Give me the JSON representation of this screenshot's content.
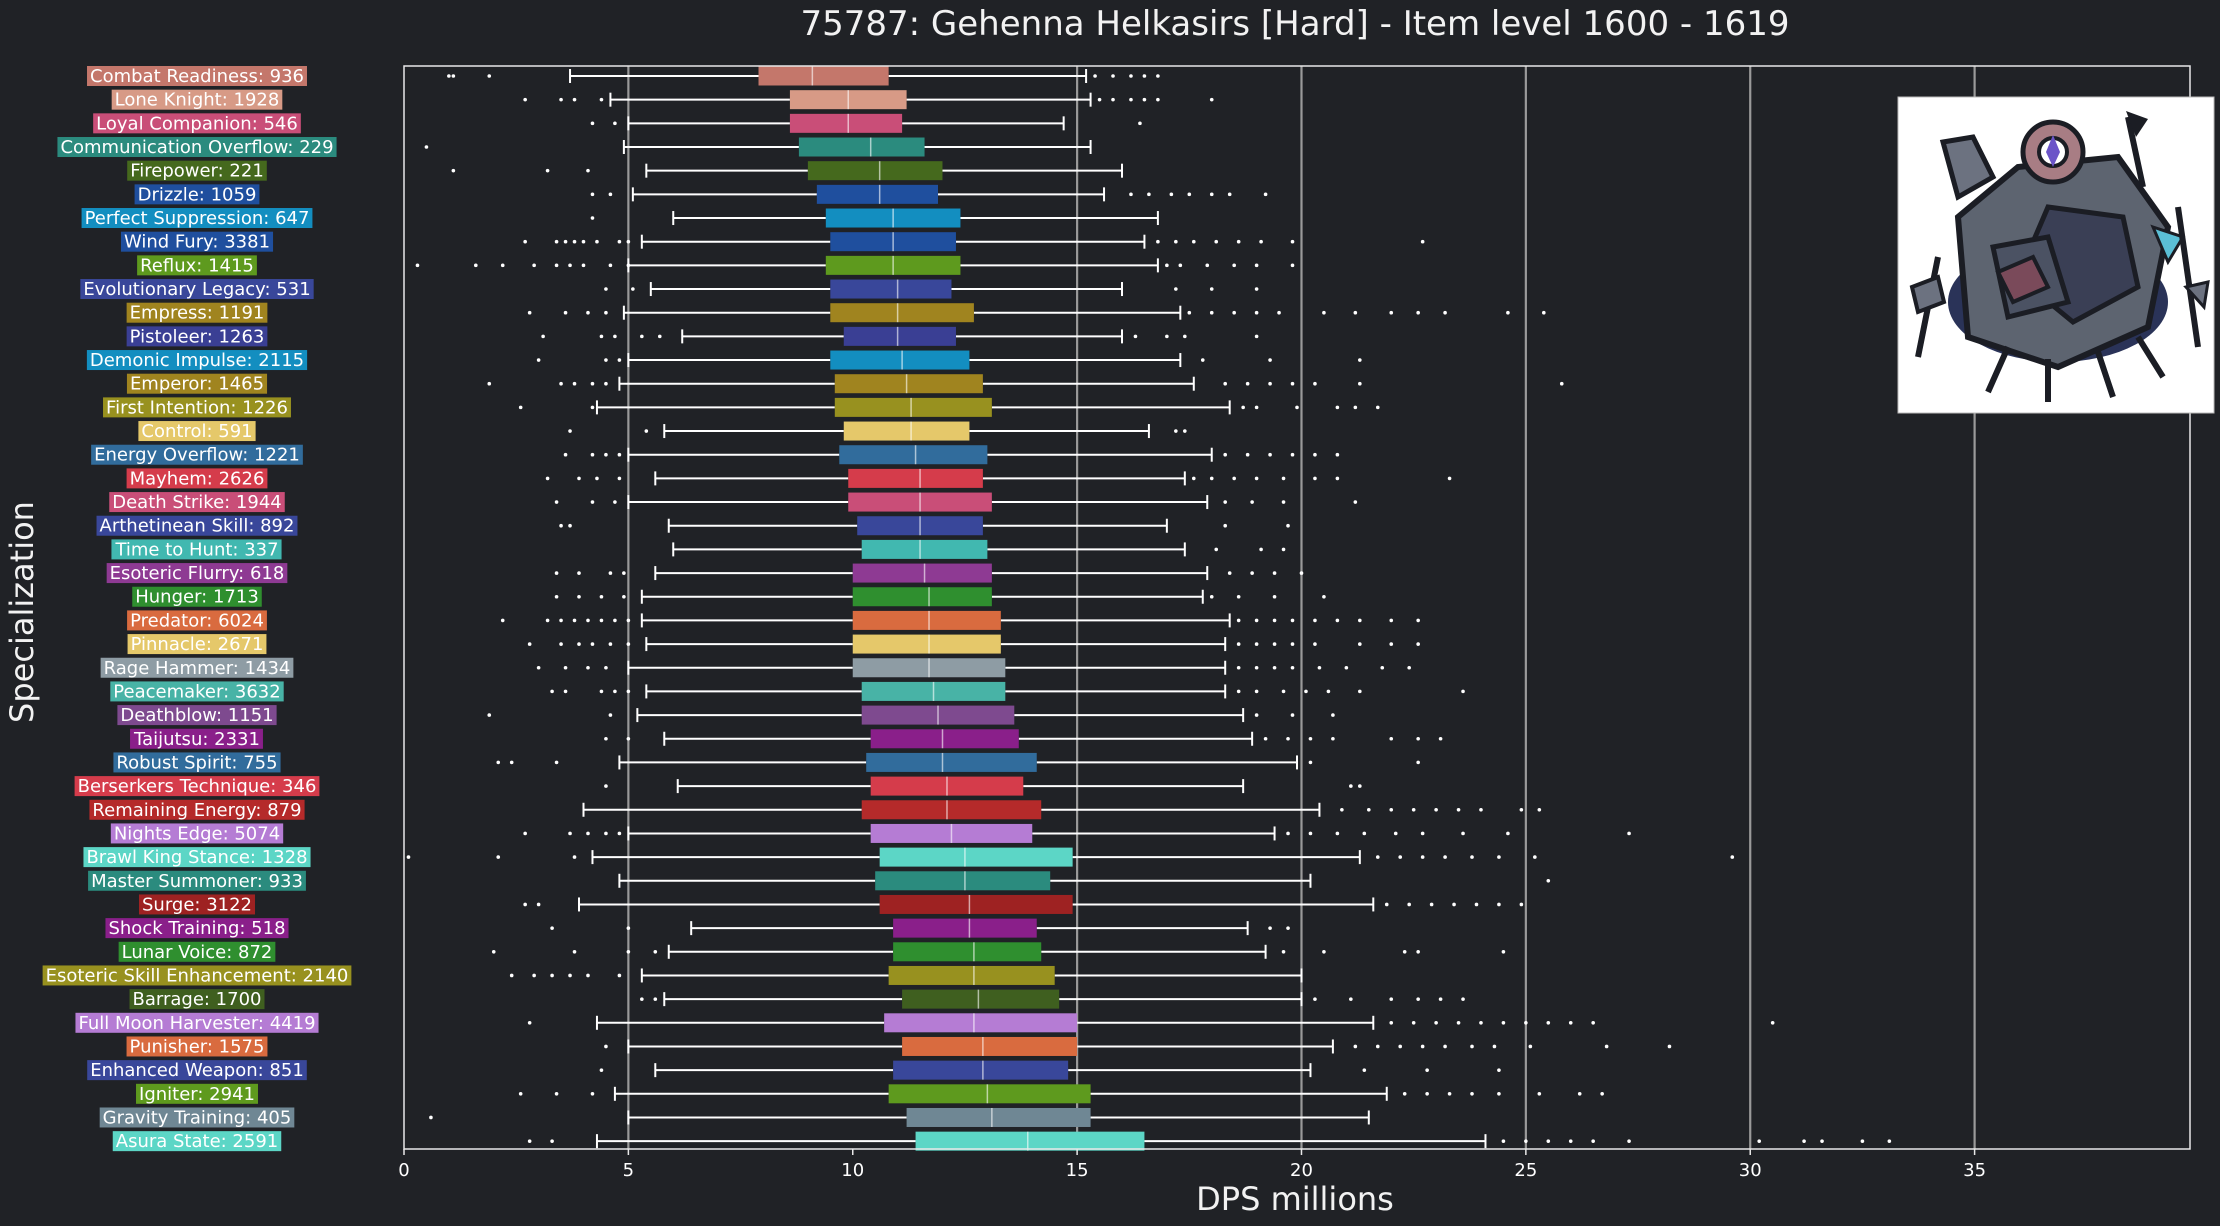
{
  "chart_data": {
    "type": "box",
    "title": "75787: Gehenna Helkasirs [Hard] - Item level 1600 - 1619",
    "xlabel": "DPS millions",
    "ylabel": "Specialization",
    "xlim": [
      0,
      39.8
    ],
    "xticks": [
      0,
      5,
      10,
      15,
      20,
      25,
      30,
      35
    ],
    "gridlines": [
      5,
      15,
      20,
      25,
      30,
      35
    ],
    "grid": "vertical",
    "image": "boss-portrait-icon",
    "series": [
      {
        "label": "Combat Readiness: 936",
        "color": "#c4776b",
        "q1": 7.9,
        "median": 9.1,
        "q3": 10.8,
        "wlo": 3.7,
        "whi": 15.2,
        "outliers": [
          1.0,
          1.1,
          1.9,
          15.4,
          15.8,
          16.2,
          16.5,
          16.8
        ]
      },
      {
        "label": "Lone Knight: 1928",
        "color": "#d79a86",
        "q1": 8.6,
        "median": 9.9,
        "q3": 11.2,
        "wlo": 4.6,
        "whi": 15.3,
        "outliers": [
          2.7,
          3.5,
          3.8,
          4.4,
          15.5,
          15.8,
          16.2,
          16.5,
          16.8,
          18.0
        ]
      },
      {
        "label": "Loyal Companion: 546",
        "color": "#c94e78",
        "q1": 8.6,
        "median": 9.9,
        "q3": 11.1,
        "wlo": 5.0,
        "whi": 14.7,
        "outliers": [
          4.2,
          4.7,
          16.4
        ]
      },
      {
        "label": "Communication Overflow: 229",
        "color": "#2b8b7e",
        "q1": 8.8,
        "median": 10.4,
        "q3": 11.6,
        "wlo": 4.9,
        "whi": 15.3,
        "outliers": [
          0.5
        ]
      },
      {
        "label": "Firepower: 221",
        "color": "#45691d",
        "q1": 9.0,
        "median": 10.6,
        "q3": 12.0,
        "wlo": 5.4,
        "whi": 16.0,
        "outliers": [
          1.1,
          3.2,
          4.1
        ]
      },
      {
        "label": "Drizzle: 1059",
        "color": "#1f4f9e",
        "q1": 9.2,
        "median": 10.6,
        "q3": 11.9,
        "wlo": 5.1,
        "whi": 15.6,
        "outliers": [
          4.2,
          4.6,
          16.2,
          16.6,
          17.1,
          17.5,
          18.0,
          18.4,
          19.2
        ]
      },
      {
        "label": "Perfect Suppression: 647",
        "color": "#138ec0",
        "q1": 9.4,
        "median": 10.9,
        "q3": 12.4,
        "wlo": 6.0,
        "whi": 16.8,
        "outliers": [
          4.2
        ]
      },
      {
        "label": "Wind Fury: 3381",
        "color": "#1f4f9e",
        "q1": 9.5,
        "median": 10.9,
        "q3": 12.3,
        "wlo": 5.3,
        "whi": 16.5,
        "outliers": [
          2.7,
          3.4,
          3.6,
          3.8,
          4.0,
          4.3,
          4.8,
          5.0,
          16.8,
          17.2,
          17.6,
          18.1,
          18.6,
          19.1,
          19.8,
          22.7
        ]
      },
      {
        "label": "Reflux: 1415",
        "color": "#5e9a1e",
        "q1": 9.4,
        "median": 10.9,
        "q3": 12.4,
        "wlo": 5.0,
        "whi": 16.8,
        "outliers": [
          0.3,
          1.6,
          2.2,
          2.9,
          3.4,
          3.7,
          4.0,
          4.6,
          5.0,
          17.0,
          17.3,
          17.9,
          18.5,
          19.0,
          19.8
        ]
      },
      {
        "label": "Evolutionary Legacy: 531",
        "color": "#39479a",
        "q1": 9.5,
        "median": 11.0,
        "q3": 12.2,
        "wlo": 5.5,
        "whi": 16.0,
        "outliers": [
          4.5,
          5.1,
          17.2,
          18.0,
          19.0
        ]
      },
      {
        "label": "Empress: 1191",
        "color": "#a0841f",
        "q1": 9.5,
        "median": 11.0,
        "q3": 12.7,
        "wlo": 4.9,
        "whi": 17.3,
        "outliers": [
          2.8,
          3.6,
          4.1,
          4.5,
          17.5,
          18.0,
          18.5,
          19.0,
          19.5,
          20.5,
          21.2,
          22.0,
          22.6,
          23.2,
          24.6,
          25.4
        ]
      },
      {
        "label": "Pistoleer: 1263",
        "color": "#3a3f94",
        "q1": 9.8,
        "median": 11.0,
        "q3": 12.3,
        "wlo": 6.2,
        "whi": 16.0,
        "outliers": [
          3.1,
          4.4,
          4.7,
          5.3,
          5.7,
          16.3,
          17.0,
          17.4,
          19.0
        ]
      },
      {
        "label": "Demonic Impulse: 2115",
        "color": "#138ec0",
        "q1": 9.5,
        "median": 11.1,
        "q3": 12.6,
        "wlo": 5.0,
        "whi": 17.3,
        "outliers": [
          3.0,
          4.5,
          4.8,
          17.8,
          19.3,
          21.3
        ]
      },
      {
        "label": "Emperor: 1465",
        "color": "#a0841f",
        "q1": 9.6,
        "median": 11.2,
        "q3": 12.9,
        "wlo": 4.8,
        "whi": 17.6,
        "outliers": [
          1.9,
          3.5,
          3.8,
          4.2,
          4.5,
          18.3,
          18.8,
          19.3,
          19.8,
          20.3,
          21.3,
          25.8
        ]
      },
      {
        "label": "First Intention: 1226",
        "color": "#98911f",
        "q1": 9.6,
        "median": 11.3,
        "q3": 13.1,
        "wlo": 4.3,
        "whi": 18.4,
        "outliers": [
          2.6,
          4.2,
          18.7,
          19.0,
          19.9,
          20.8,
          21.2,
          21.7
        ]
      },
      {
        "label": "Control: 591",
        "color": "#e5c86a",
        "q1": 9.8,
        "median": 11.3,
        "q3": 12.6,
        "wlo": 5.8,
        "whi": 16.6,
        "outliers": [
          3.7,
          5.4,
          17.2,
          17.4
        ]
      },
      {
        "label": "Energy Overflow: 1221",
        "color": "#316c9c",
        "q1": 9.7,
        "median": 11.4,
        "q3": 13.0,
        "wlo": 5.0,
        "whi": 18.0,
        "outliers": [
          3.6,
          4.2,
          4.5,
          4.8,
          18.3,
          18.8,
          19.3,
          19.8,
          20.3,
          20.8
        ]
      },
      {
        "label": "Mayhem: 2626",
        "color": "#d53c4b",
        "q1": 9.9,
        "median": 11.5,
        "q3": 12.9,
        "wlo": 5.6,
        "whi": 17.4,
        "outliers": [
          3.2,
          3.9,
          4.3,
          4.8,
          17.6,
          18.0,
          18.5,
          19.0,
          19.6,
          20.3,
          20.8,
          23.3
        ]
      },
      {
        "label": "Death Strike: 1944",
        "color": "#c94e78",
        "q1": 9.9,
        "median": 11.5,
        "q3": 13.1,
        "wlo": 5.0,
        "whi": 17.9,
        "outliers": [
          3.4,
          4.2,
          4.7,
          18.3,
          18.9,
          19.6,
          21.2
        ]
      },
      {
        "label": "Arthetinean Skill: 892",
        "color": "#39479a",
        "q1": 10.1,
        "median": 11.5,
        "q3": 12.9,
        "wlo": 5.9,
        "whi": 17.0,
        "outliers": [
          3.5,
          3.7,
          18.3,
          19.7
        ]
      },
      {
        "label": "Time to Hunt: 337",
        "color": "#41b8b0",
        "q1": 10.2,
        "median": 11.5,
        "q3": 13.0,
        "wlo": 6.0,
        "whi": 17.4,
        "outliers": [
          18.1,
          19.1,
          19.6
        ]
      },
      {
        "label": "Esoteric Flurry: 618",
        "color": "#8e3a93",
        "q1": 10.0,
        "median": 11.6,
        "q3": 13.1,
        "wlo": 5.6,
        "whi": 17.9,
        "outliers": [
          3.4,
          3.9,
          4.6,
          4.9,
          18.4,
          18.9,
          19.4,
          20.0
        ]
      },
      {
        "label": "Hunger: 1713",
        "color": "#2f8f2f",
        "q1": 10.0,
        "median": 11.7,
        "q3": 13.1,
        "wlo": 5.3,
        "whi": 17.8,
        "outliers": [
          3.4,
          3.9,
          4.4,
          4.9,
          18.0,
          18.6,
          19.4,
          20.5
        ]
      },
      {
        "label": "Predator: 6024",
        "color": "#d96b3f",
        "q1": 10.0,
        "median": 11.7,
        "q3": 13.3,
        "wlo": 5.3,
        "whi": 18.4,
        "outliers": [
          2.2,
          3.2,
          3.5,
          3.8,
          4.1,
          4.4,
          4.7,
          5.0,
          18.6,
          19.0,
          19.4,
          19.8,
          20.3,
          20.8,
          21.3,
          22.0,
          22.6
        ]
      },
      {
        "label": "Pinnacle: 2671",
        "color": "#e5c86a",
        "q1": 10.0,
        "median": 11.7,
        "q3": 13.3,
        "wlo": 5.4,
        "whi": 18.3,
        "outliers": [
          2.8,
          3.5,
          3.9,
          4.2,
          4.6,
          5.0,
          18.6,
          19.0,
          19.4,
          19.8,
          20.3,
          21.3,
          22.0,
          22.6
        ]
      },
      {
        "label": "Rage Hammer: 1434",
        "color": "#8e9ca4",
        "q1": 10.0,
        "median": 11.7,
        "q3": 13.4,
        "wlo": 5.0,
        "whi": 18.3,
        "outliers": [
          3.0,
          3.6,
          4.1,
          4.5,
          18.6,
          19.0,
          19.4,
          19.8,
          20.4,
          21.0,
          21.8,
          22.4
        ]
      },
      {
        "label": "Peacemaker: 3632",
        "color": "#48b3a6",
        "q1": 10.2,
        "median": 11.8,
        "q3": 13.4,
        "wlo": 5.4,
        "whi": 18.3,
        "outliers": [
          3.3,
          3.6,
          4.4,
          4.7,
          5.0,
          18.6,
          19.0,
          19.6,
          20.1,
          20.6,
          21.3,
          23.6
        ]
      },
      {
        "label": "Deathblow: 1151",
        "color": "#7e4a8f",
        "q1": 10.2,
        "median": 11.9,
        "q3": 13.6,
        "wlo": 5.2,
        "whi": 18.7,
        "outliers": [
          1.9,
          4.6,
          19.0,
          19.8,
          20.7
        ]
      },
      {
        "label": "Taijutsu: 2331",
        "color": "#8a1f8a",
        "q1": 10.4,
        "median": 12.0,
        "q3": 13.7,
        "wlo": 5.8,
        "whi": 18.9,
        "outliers": [
          4.5,
          5.0,
          19.2,
          19.7,
          20.2,
          20.7,
          22.0,
          22.6,
          23.1
        ]
      },
      {
        "label": "Robust Spirit: 755",
        "color": "#316c9c",
        "q1": 10.3,
        "median": 12.0,
        "q3": 14.1,
        "wlo": 4.8,
        "whi": 19.9,
        "outliers": [
          2.1,
          2.4,
          3.4,
          20.2,
          22.6
        ]
      },
      {
        "label": "Berserkers Technique: 346",
        "color": "#d53c4b",
        "q1": 10.4,
        "median": 12.1,
        "q3": 13.8,
        "wlo": 6.1,
        "whi": 18.7,
        "outliers": [
          4.5,
          21.1,
          21.3
        ]
      },
      {
        "label": "Remaining Energy: 879",
        "color": "#b52a2a",
        "q1": 10.2,
        "median": 12.1,
        "q3": 14.2,
        "wlo": 4.0,
        "whi": 20.4,
        "outliers": [
          20.9,
          21.5,
          22.0,
          22.5,
          23.0,
          23.5,
          24.0,
          24.9,
          25.3
        ]
      },
      {
        "label": "Nights Edge: 5074",
        "color": "#b57cd4",
        "q1": 10.4,
        "median": 12.2,
        "q3": 14.0,
        "wlo": 5.0,
        "whi": 19.4,
        "outliers": [
          2.7,
          3.7,
          4.1,
          4.5,
          4.8,
          19.7,
          20.2,
          20.8,
          21.4,
          22.1,
          22.7,
          23.6,
          24.6,
          27.3
        ]
      },
      {
        "label": "Brawl King Stance: 1328",
        "color": "#5cd6c6",
        "q1": 10.6,
        "median": 12.5,
        "q3": 14.9,
        "wlo": 4.2,
        "whi": 21.3,
        "outliers": [
          0.1,
          2.1,
          3.8,
          21.7,
          22.2,
          22.7,
          23.2,
          23.8,
          24.4,
          25.2,
          29.6
        ]
      },
      {
        "label": "Master Summoner: 933",
        "color": "#2b8b7e",
        "q1": 10.5,
        "median": 12.5,
        "q3": 14.4,
        "wlo": 4.8,
        "whi": 20.2,
        "outliers": [
          25.5
        ]
      },
      {
        "label": "Surge: 3122",
        "color": "#9e2222",
        "q1": 10.6,
        "median": 12.6,
        "q3": 14.9,
        "wlo": 3.9,
        "whi": 21.6,
        "outliers": [
          2.7,
          3.0,
          21.9,
          22.4,
          22.9,
          23.4,
          23.9,
          24.4,
          24.9
        ]
      },
      {
        "label": "Shock Training: 518",
        "color": "#8a1f8a",
        "q1": 10.9,
        "median": 12.6,
        "q3": 14.1,
        "wlo": 6.4,
        "whi": 18.8,
        "outliers": [
          3.3,
          5.0,
          19.3,
          19.7
        ]
      },
      {
        "label": "Lunar Voice: 872",
        "color": "#2f8f2f",
        "q1": 10.9,
        "median": 12.7,
        "q3": 14.2,
        "wlo": 5.9,
        "whi": 19.2,
        "outliers": [
          2.0,
          3.8,
          5.0,
          5.6,
          19.6,
          20.5,
          22.3,
          22.6,
          24.5
        ]
      },
      {
        "label": "Esoteric Skill Enhancement: 2140",
        "color": "#98911f",
        "q1": 10.8,
        "median": 12.7,
        "q3": 14.5,
        "wlo": 5.3,
        "whi": 20.0,
        "outliers": [
          2.4,
          2.9,
          3.3,
          3.7,
          4.1,
          4.8
        ]
      },
      {
        "label": "Barrage: 1700",
        "color": "#3f5f1f",
        "q1": 11.1,
        "median": 12.8,
        "q3": 14.6,
        "wlo": 5.8,
        "whi": 20.0,
        "outliers": [
          5.3,
          5.6,
          20.3,
          21.1,
          22.0,
          22.6,
          23.1,
          23.6
        ]
      },
      {
        "label": "Full Moon Harvester: 4419",
        "color": "#b57cd4",
        "q1": 10.7,
        "median": 12.7,
        "q3": 15.0,
        "wlo": 4.3,
        "whi": 21.6,
        "outliers": [
          2.8,
          22.0,
          22.5,
          23.0,
          23.5,
          24.0,
          24.5,
          25.0,
          25.5,
          26.0,
          26.5,
          30.5
        ]
      },
      {
        "label": "Punisher: 1575",
        "color": "#d96b3f",
        "q1": 11.1,
        "median": 12.9,
        "q3": 15.0,
        "wlo": 5.0,
        "whi": 20.7,
        "outliers": [
          4.5,
          21.2,
          21.7,
          22.2,
          22.7,
          23.2,
          23.8,
          24.3,
          25.1,
          26.8,
          28.2
        ]
      },
      {
        "label": "Enhanced Weapon: 851",
        "color": "#39479a",
        "q1": 10.9,
        "median": 12.9,
        "q3": 14.8,
        "wlo": 5.6,
        "whi": 20.2,
        "outliers": [
          4.4,
          21.4,
          22.8,
          24.4
        ]
      },
      {
        "label": "Igniter: 2941",
        "color": "#5e9a1e",
        "q1": 10.8,
        "median": 13.0,
        "q3": 15.3,
        "wlo": 4.7,
        "whi": 21.9,
        "outliers": [
          2.6,
          3.4,
          4.2,
          22.3,
          22.8,
          23.3,
          23.8,
          24.4,
          25.3,
          26.2,
          26.7
        ]
      },
      {
        "label": "Gravity Training: 405",
        "color": "#6f8794",
        "q1": 11.2,
        "median": 13.1,
        "q3": 15.3,
        "wlo": 5.0,
        "whi": 21.5,
        "outliers": [
          0.6
        ]
      },
      {
        "label": "Asura State: 2591",
        "color": "#5cd6c6",
        "q1": 11.4,
        "median": 13.9,
        "q3": 16.5,
        "wlo": 4.3,
        "whi": 24.1,
        "outliers": [
          2.8,
          3.3,
          24.5,
          25.0,
          25.5,
          26.0,
          26.5,
          27.3,
          30.2,
          31.2,
          31.6,
          32.5,
          33.1
        ]
      }
    ]
  }
}
